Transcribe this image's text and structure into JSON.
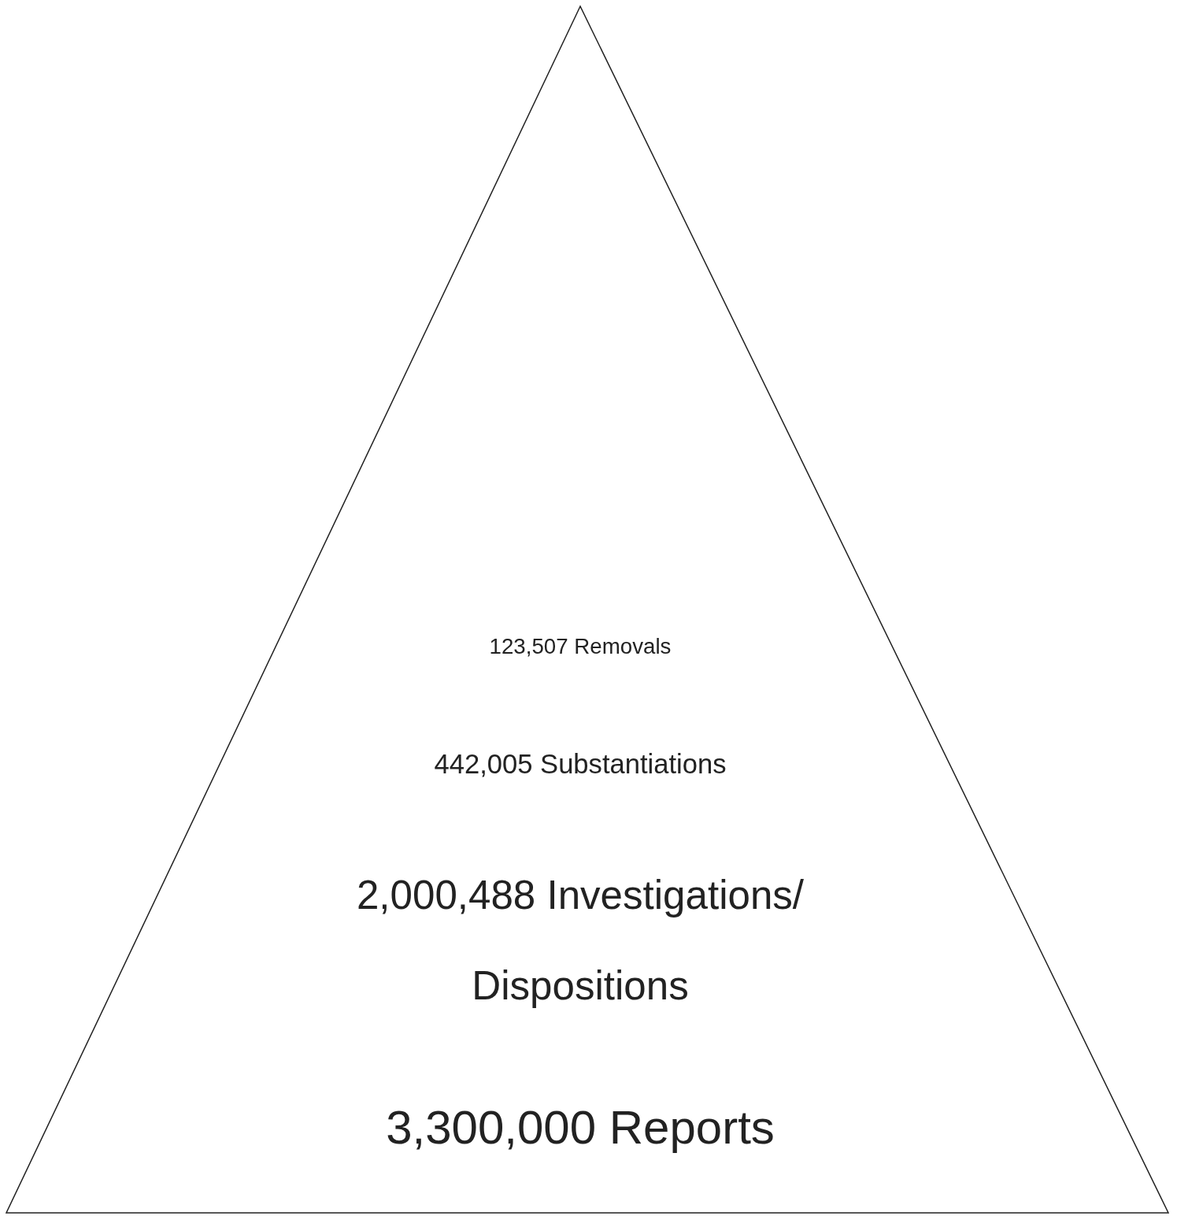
{
  "chart_data": {
    "type": "other",
    "categories": [
      "Removals",
      "Substantiations",
      "Investigations/ Dispositions",
      "Reports"
    ],
    "values": [
      123507,
      442005,
      2000488,
      3300000
    ],
    "value_labels": [
      "123,507",
      "442,005",
      "2,000,488",
      "3,300,000"
    ]
  }
}
